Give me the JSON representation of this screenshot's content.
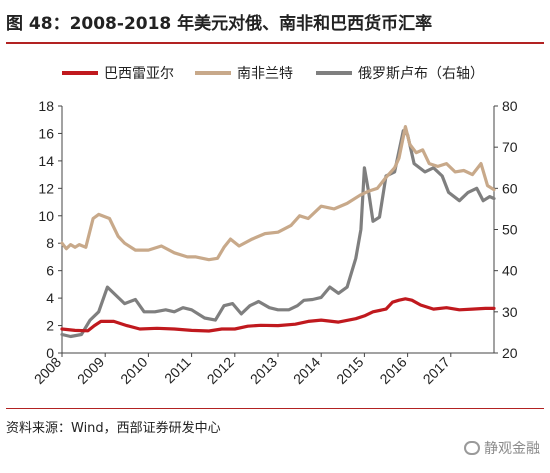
{
  "page": {
    "title": "图 48：2008-2018 年美元对俄、南非和巴西货币汇率",
    "source": "资料来源：Wind，西部证券研发中心",
    "watermark": "静观金融"
  },
  "chart_data": {
    "type": "line",
    "x_ticks": [
      "2008",
      "2009",
      "2010",
      "2011",
      "2012",
      "2013",
      "2014",
      "2015",
      "2016",
      "2017"
    ],
    "xlim": [
      2008,
      2018
    ],
    "ylim_left": [
      0,
      18
    ],
    "yticks_left": [
      0,
      2,
      4,
      6,
      8,
      10,
      12,
      14,
      16,
      18
    ],
    "ylim_right": [
      20,
      80
    ],
    "yticks_right": [
      20,
      30,
      40,
      50,
      60,
      70,
      80
    ],
    "grid": false,
    "legend_position": "top",
    "series": [
      {
        "name": "巴西雷亚尔",
        "axis": "left",
        "color": "#c0191e",
        "points": [
          [
            2008.0,
            1.75
          ],
          [
            2008.3,
            1.65
          ],
          [
            2008.6,
            1.62
          ],
          [
            2008.75,
            2.0
          ],
          [
            2008.9,
            2.3
          ],
          [
            2009.2,
            2.3
          ],
          [
            2009.5,
            2.0
          ],
          [
            2009.8,
            1.75
          ],
          [
            2010.2,
            1.8
          ],
          [
            2010.6,
            1.75
          ],
          [
            2011.0,
            1.65
          ],
          [
            2011.4,
            1.6
          ],
          [
            2011.7,
            1.75
          ],
          [
            2012.0,
            1.75
          ],
          [
            2012.3,
            1.95
          ],
          [
            2012.6,
            2.02
          ],
          [
            2013.0,
            2.0
          ],
          [
            2013.4,
            2.1
          ],
          [
            2013.7,
            2.3
          ],
          [
            2014.0,
            2.4
          ],
          [
            2014.4,
            2.25
          ],
          [
            2014.8,
            2.5
          ],
          [
            2015.0,
            2.7
          ],
          [
            2015.2,
            3.0
          ],
          [
            2015.5,
            3.2
          ],
          [
            2015.65,
            3.7
          ],
          [
            2015.8,
            3.85
          ],
          [
            2015.95,
            3.95
          ],
          [
            2016.1,
            3.85
          ],
          [
            2016.3,
            3.5
          ],
          [
            2016.6,
            3.2
          ],
          [
            2016.9,
            3.3
          ],
          [
            2017.2,
            3.15
          ],
          [
            2017.5,
            3.2
          ],
          [
            2017.8,
            3.25
          ],
          [
            2018.0,
            3.25
          ]
        ]
      },
      {
        "name": "南非兰特",
        "axis": "left",
        "color": "#c8a98a",
        "points": [
          [
            2008.0,
            8.0
          ],
          [
            2008.1,
            7.6
          ],
          [
            2008.2,
            7.9
          ],
          [
            2008.3,
            7.7
          ],
          [
            2008.4,
            7.9
          ],
          [
            2008.55,
            7.7
          ],
          [
            2008.72,
            9.8
          ],
          [
            2008.85,
            10.1
          ],
          [
            2009.1,
            9.8
          ],
          [
            2009.3,
            8.5
          ],
          [
            2009.45,
            8.0
          ],
          [
            2009.7,
            7.5
          ],
          [
            2010.0,
            7.5
          ],
          [
            2010.3,
            7.8
          ],
          [
            2010.6,
            7.3
          ],
          [
            2010.9,
            7.0
          ],
          [
            2011.1,
            7.0
          ],
          [
            2011.4,
            6.8
          ],
          [
            2011.6,
            6.9
          ],
          [
            2011.75,
            7.7
          ],
          [
            2011.9,
            8.3
          ],
          [
            2012.1,
            7.8
          ],
          [
            2012.4,
            8.3
          ],
          [
            2012.7,
            8.7
          ],
          [
            2013.0,
            8.8
          ],
          [
            2013.3,
            9.3
          ],
          [
            2013.5,
            10.0
          ],
          [
            2013.7,
            9.8
          ],
          [
            2014.0,
            10.7
          ],
          [
            2014.3,
            10.5
          ],
          [
            2014.6,
            10.9
          ],
          [
            2014.9,
            11.5
          ],
          [
            2015.1,
            11.8
          ],
          [
            2015.3,
            12.0
          ],
          [
            2015.5,
            12.8
          ],
          [
            2015.7,
            13.5
          ],
          [
            2015.8,
            14.2
          ],
          [
            2015.95,
            16.5
          ],
          [
            2016.05,
            15.2
          ],
          [
            2016.2,
            14.6
          ],
          [
            2016.35,
            14.8
          ],
          [
            2016.5,
            13.8
          ],
          [
            2016.7,
            13.6
          ],
          [
            2016.9,
            13.8
          ],
          [
            2017.1,
            13.2
          ],
          [
            2017.3,
            13.3
          ],
          [
            2017.5,
            13.0
          ],
          [
            2017.7,
            13.8
          ],
          [
            2017.85,
            12.2
          ],
          [
            2018.0,
            11.9
          ]
        ]
      },
      {
        "name": "俄罗斯卢布（右轴）",
        "axis": "right",
        "color": "#7f7f7f",
        "points": [
          [
            2008.0,
            24.5
          ],
          [
            2008.2,
            24.0
          ],
          [
            2008.45,
            24.5
          ],
          [
            2008.65,
            28.0
          ],
          [
            2008.85,
            30.0
          ],
          [
            2009.05,
            36.0
          ],
          [
            2009.25,
            34.0
          ],
          [
            2009.45,
            32.0
          ],
          [
            2009.7,
            33.0
          ],
          [
            2009.9,
            30.0
          ],
          [
            2010.15,
            30.0
          ],
          [
            2010.4,
            30.5
          ],
          [
            2010.6,
            30.0
          ],
          [
            2010.8,
            31.0
          ],
          [
            2011.0,
            30.5
          ],
          [
            2011.3,
            28.5
          ],
          [
            2011.55,
            28.0
          ],
          [
            2011.75,
            31.5
          ],
          [
            2011.95,
            32.0
          ],
          [
            2012.15,
            29.5
          ],
          [
            2012.35,
            31.5
          ],
          [
            2012.55,
            32.5
          ],
          [
            2012.8,
            31.0
          ],
          [
            2013.0,
            30.5
          ],
          [
            2013.25,
            30.5
          ],
          [
            2013.45,
            31.5
          ],
          [
            2013.6,
            32.8
          ],
          [
            2013.8,
            33.0
          ],
          [
            2014.0,
            33.5
          ],
          [
            2014.2,
            36.0
          ],
          [
            2014.4,
            34.5
          ],
          [
            2014.6,
            36.0
          ],
          [
            2014.8,
            43.0
          ],
          [
            2014.92,
            50.0
          ],
          [
            2015.0,
            65.0
          ],
          [
            2015.1,
            59.0
          ],
          [
            2015.2,
            52.0
          ],
          [
            2015.35,
            53.0
          ],
          [
            2015.5,
            63.0
          ],
          [
            2015.7,
            64.0
          ],
          [
            2015.9,
            74.0
          ],
          [
            2016.0,
            73.0
          ],
          [
            2016.15,
            66.0
          ],
          [
            2016.4,
            64.0
          ],
          [
            2016.6,
            65.0
          ],
          [
            2016.8,
            63.0
          ],
          [
            2016.95,
            59.0
          ],
          [
            2017.2,
            57.0
          ],
          [
            2017.4,
            59.0
          ],
          [
            2017.6,
            60.0
          ],
          [
            2017.75,
            57.0
          ],
          [
            2017.9,
            58.0
          ],
          [
            2018.0,
            57.5
          ]
        ]
      }
    ]
  }
}
